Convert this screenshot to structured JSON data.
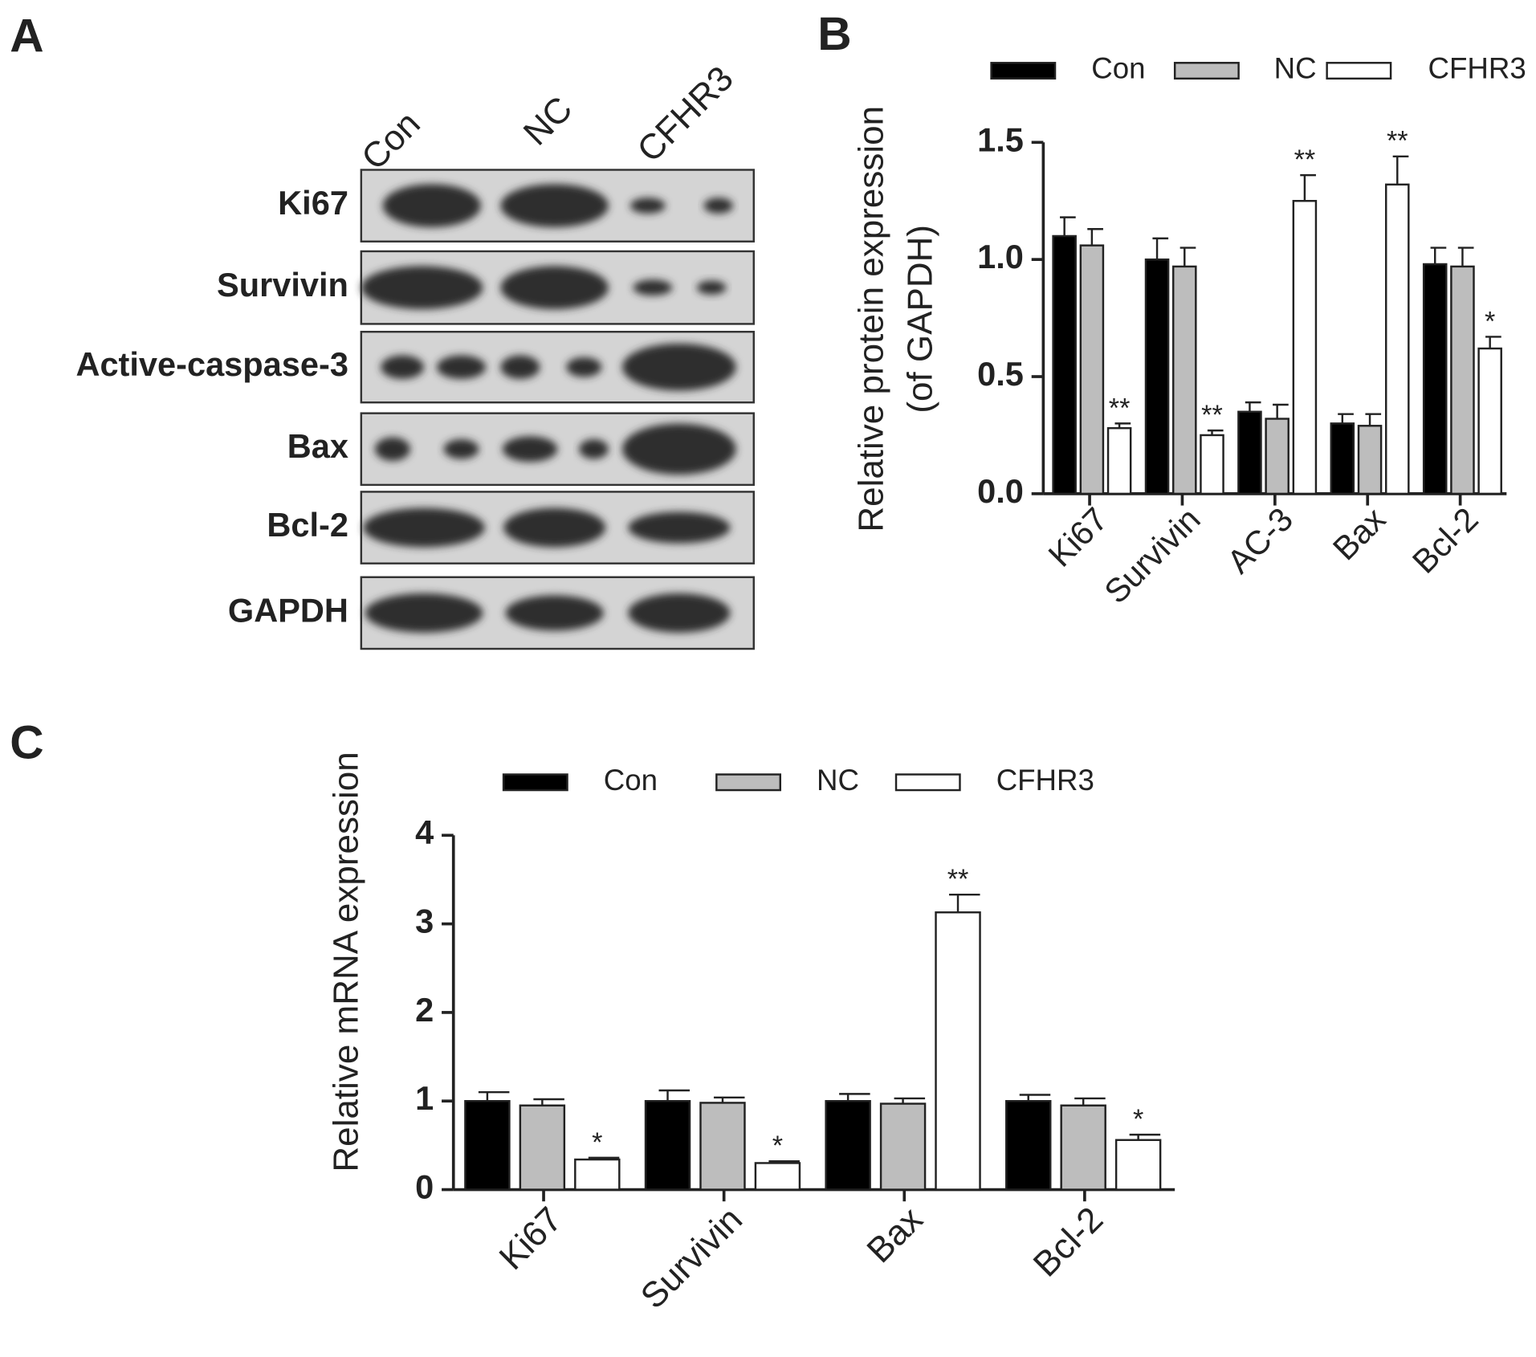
{
  "panels": [
    "A",
    "B",
    "C"
  ],
  "blot": {
    "lanes": [
      "Con",
      "NC",
      "CFHR3"
    ],
    "rows": [
      "Ki67",
      "Survivin",
      "Active-caspase-3",
      "Bax",
      "Bcl-2",
      "GAPDH"
    ]
  },
  "chart_data": [
    {
      "type": "bar",
      "ylabel": [
        "Relative protein expression",
        "(of GAPDH)"
      ],
      "categories": [
        "Ki67",
        "Survivin",
        "AC-3",
        "Bax",
        "Bcl-2"
      ],
      "series": [
        {
          "name": "Con",
          "color": "#000000",
          "values": [
            1.1,
            1.0,
            0.35,
            0.3,
            0.98
          ],
          "errors": [
            0.08,
            0.09,
            0.04,
            0.04,
            0.07
          ]
        },
        {
          "name": "NC",
          "color": "#bdbdbd",
          "values": [
            1.06,
            0.97,
            0.32,
            0.29,
            0.97
          ],
          "errors": [
            0.07,
            0.08,
            0.06,
            0.05,
            0.08
          ]
        },
        {
          "name": "CFHR3",
          "color": "#ffffff",
          "values": [
            0.28,
            0.25,
            1.25,
            1.32,
            0.62
          ],
          "errors": [
            0.02,
            0.02,
            0.11,
            0.12,
            0.05
          ],
          "annotations": [
            "**",
            "**",
            "**",
            "**",
            "*"
          ]
        }
      ],
      "ylim": [
        0,
        1.5
      ],
      "yticks": [
        {
          "value": 0,
          "label": "0.0"
        },
        0.5,
        {
          "value": 1,
          "label": "1.0"
        },
        1.5
      ]
    },
    {
      "type": "bar",
      "ylabel": [
        "Relative mRNA expression"
      ],
      "categories": [
        "Ki67",
        "Survivin",
        "Bax",
        "Bcl-2"
      ],
      "series": [
        {
          "name": "Con",
          "color": "#000000",
          "values": [
            1.0,
            1.0,
            1.0,
            1.0
          ],
          "errors": [
            0.1,
            0.12,
            0.08,
            0.07
          ]
        },
        {
          "name": "NC",
          "color": "#bdbdbd",
          "values": [
            0.95,
            0.98,
            0.97,
            0.95
          ],
          "errors": [
            0.07,
            0.06,
            0.06,
            0.08
          ]
        },
        {
          "name": "CFHR3",
          "color": "#ffffff",
          "values": [
            0.34,
            0.3,
            3.13,
            0.56
          ],
          "errors": [
            0.02,
            0.02,
            0.2,
            0.06
          ],
          "annotations": [
            "*",
            "*",
            "**",
            "*"
          ]
        }
      ],
      "ylim": [
        0,
        4
      ],
      "yticks": [
        0,
        1,
        2,
        3,
        4
      ]
    }
  ]
}
